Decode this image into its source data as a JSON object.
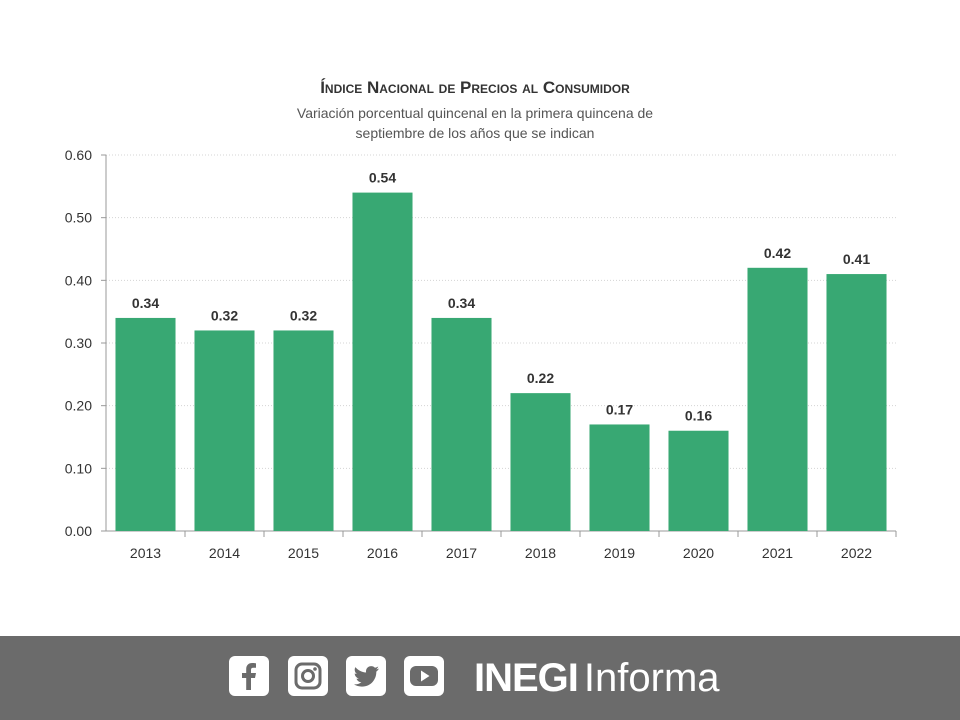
{
  "chart_data": {
    "type": "bar",
    "title": "Índice Nacional de Precios al Consumidor",
    "subtitle_lines": [
      "Variación porcentual quincenal en la primera quincena de",
      "septiembre de los años que se indican"
    ],
    "categories": [
      "2013",
      "2014",
      "2015",
      "2016",
      "2017",
      "2018",
      "2019",
      "2020",
      "2021",
      "2022"
    ],
    "values": [
      0.34,
      0.32,
      0.32,
      0.54,
      0.34,
      0.22,
      0.17,
      0.16,
      0.42,
      0.41
    ],
    "value_labels": [
      "0.34",
      "0.32",
      "0.32",
      "0.54",
      "0.34",
      "0.22",
      "0.17",
      "0.16",
      "0.42",
      "0.41"
    ],
    "yticks": [
      "0.00",
      "0.10",
      "0.20",
      "0.30",
      "0.40",
      "0.50",
      "0.60"
    ],
    "ylim": [
      0,
      0.6
    ],
    "grid": true,
    "bar_color": "#38a873"
  },
  "footer": {
    "icons": [
      "facebook-icon",
      "instagram-icon",
      "twitter-icon",
      "youtube-icon"
    ],
    "brand_bold": "INEGI",
    "brand_light": "Informa",
    "background": "#6b6b6b"
  }
}
